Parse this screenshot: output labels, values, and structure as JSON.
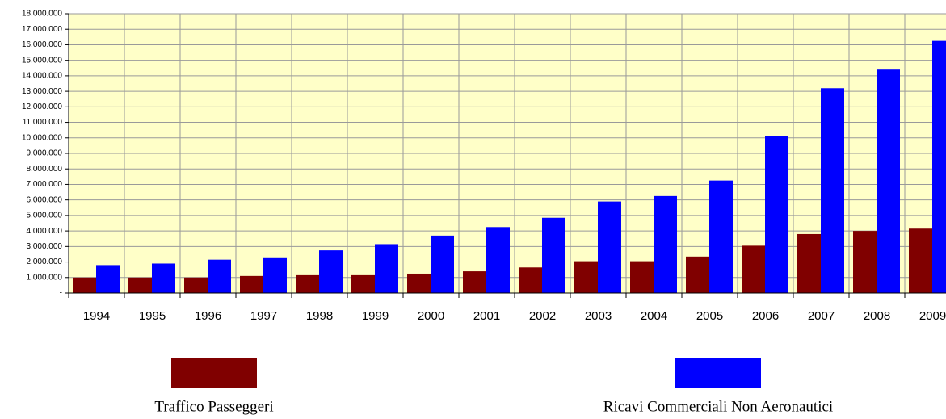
{
  "chart_data": {
    "type": "bar",
    "categories": [
      "1994",
      "1995",
      "1996",
      "1997",
      "1998",
      "1999",
      "2000",
      "2001",
      "2002",
      "2003",
      "2004",
      "2005",
      "2006",
      "2007",
      "2008",
      "2009"
    ],
    "series": [
      {
        "name": "Traffico Passeggeri",
        "color": "#800000",
        "values": [
          1000000,
          1000000,
          1000000,
          1100000,
          1150000,
          1150000,
          1250000,
          1400000,
          1650000,
          2050000,
          2050000,
          2350000,
          3050000,
          3800000,
          4000000,
          4150000
        ]
      },
      {
        "name": "Ricavi Commerciali Non Aeronautici",
        "color": "#0000ff",
        "values": [
          1800000,
          1900000,
          2150000,
          2300000,
          2750000,
          3150000,
          3700000,
          4250000,
          4850000,
          5900000,
          6250000,
          7250000,
          10100000,
          13200000,
          14400000,
          16250000
        ]
      }
    ],
    "ylim": [
      0,
      18000000
    ],
    "yticks": [
      {
        "value": 0,
        "label": "-"
      },
      {
        "value": 1000000,
        "label": "1.000.000"
      },
      {
        "value": 2000000,
        "label": "2.000.000"
      },
      {
        "value": 3000000,
        "label": "3.000.000"
      },
      {
        "value": 4000000,
        "label": "4.000.000"
      },
      {
        "value": 5000000,
        "label": "5.000.000"
      },
      {
        "value": 6000000,
        "label": "6.000.000"
      },
      {
        "value": 7000000,
        "label": "7.000.000"
      },
      {
        "value": 8000000,
        "label": "8.000.000"
      },
      {
        "value": 9000000,
        "label": "9.000.000"
      },
      {
        "value": 10000000,
        "label": "10.000.000"
      },
      {
        "value": 11000000,
        "label": "11.000.000"
      },
      {
        "value": 12000000,
        "label": "12.000.000"
      },
      {
        "value": 13000000,
        "label": "13.000.000"
      },
      {
        "value": 14000000,
        "label": "14.000.000"
      },
      {
        "value": 15000000,
        "label": "15.000.000"
      },
      {
        "value": 16000000,
        "label": "16.000.000"
      },
      {
        "value": 17000000,
        "label": "17.000.000"
      },
      {
        "value": 18000000,
        "label": "18.000.000"
      }
    ],
    "grid": true
  }
}
